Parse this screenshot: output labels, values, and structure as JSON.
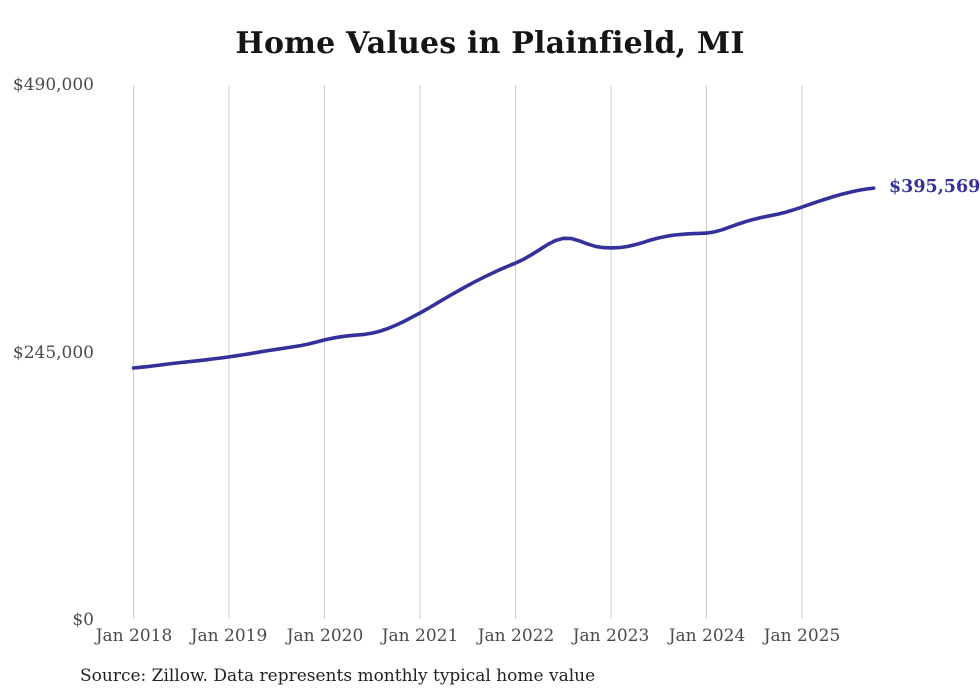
{
  "chart_data": {
    "type": "line",
    "title": "Home Values in Plainfield, MI",
    "x_tick_labels": [
      "Jan 2018",
      "Jan 2019",
      "Jan 2020",
      "Jan 2021",
      "Jan 2022",
      "Jan 2023",
      "Jan 2024",
      "Jan 2025"
    ],
    "x_tick_month_indices": [
      0,
      12,
      24,
      36,
      48,
      60,
      72,
      84
    ],
    "y_tick_labels": [
      "$490,000",
      "$245,000",
      "$0"
    ],
    "y_tick_values": [
      490000,
      245000,
      0
    ],
    "ylim": [
      0,
      490000
    ],
    "start_month": "2018-01",
    "end_month": "2025-10",
    "grid": "vertical-only",
    "legend": "none",
    "line_color": "#34319b",
    "grid_color": "#cccccc",
    "end_label": "$395,569",
    "end_value": 395569,
    "series": [
      {
        "name": "Monthly typical home value",
        "unit": "USD",
        "monthly_values": [
          230800,
          231500,
          232300,
          233200,
          234100,
          235000,
          235800,
          236600,
          237400,
          238200,
          239100,
          240000,
          241000,
          242100,
          243200,
          244400,
          245600,
          246800,
          247900,
          249000,
          250100,
          251300,
          252800,
          254600,
          256500,
          258100,
          259400,
          260300,
          260900,
          261600,
          262800,
          264600,
          267100,
          270100,
          273500,
          277300,
          281200,
          285300,
          289600,
          293900,
          298100,
          302200,
          306300,
          310200,
          313900,
          317400,
          320700,
          323900,
          326900,
          330400,
          334500,
          339100,
          343700,
          347500,
          349600,
          349400,
          347300,
          344600,
          342300,
          341100,
          340800,
          341100,
          342000,
          343600,
          345700,
          348000,
          350000,
          351500,
          352600,
          353300,
          353800,
          354100,
          354400,
          355500,
          357500,
          360100,
          362700,
          365100,
          367100,
          368800,
          370300,
          371800,
          373600,
          375800,
          378200,
          380700,
          383200,
          385600,
          387900,
          390000,
          391800,
          393400,
          394700,
          395569
        ]
      }
    ],
    "source_note": "Source: Zillow. Data represents monthly typical home value"
  }
}
